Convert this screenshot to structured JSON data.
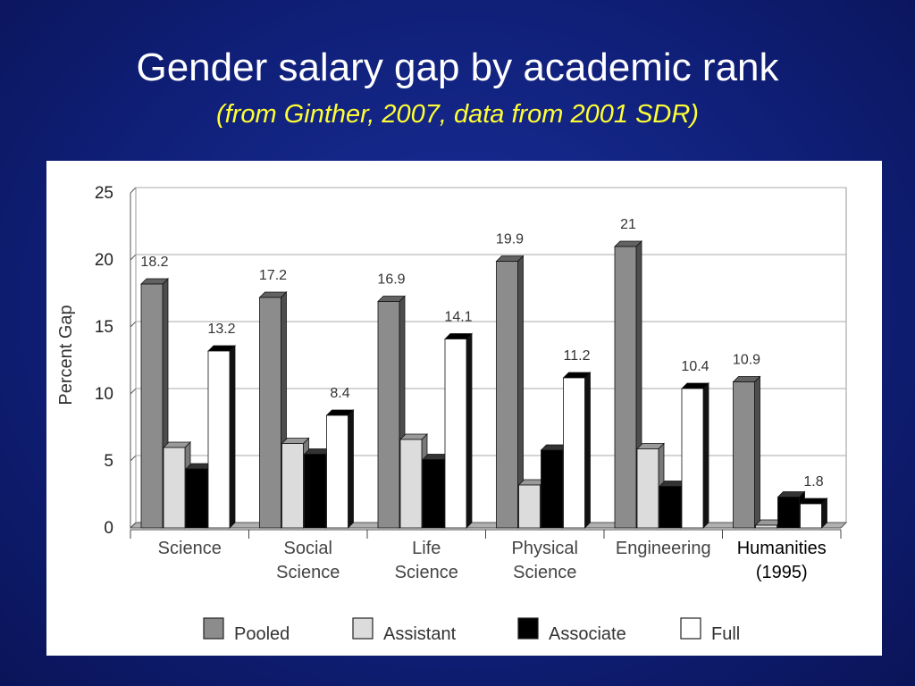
{
  "slide": {
    "title": "Gender salary gap by academic rank",
    "subtitle": "(from Ginther, 2007, data from 2001 SDR)"
  },
  "chart_data": {
    "type": "bar",
    "title": "",
    "xlabel": "",
    "ylabel": "Percent Gap",
    "ylim": [
      0,
      25
    ],
    "yticks": [
      0,
      5,
      10,
      15,
      20,
      25
    ],
    "grid": true,
    "legend_position": "bottom",
    "categories": [
      [
        "Science"
      ],
      [
        "Social",
        "Science"
      ],
      [
        "Life",
        "Science"
      ],
      [
        "Physical",
        "Science"
      ],
      [
        "Engineering"
      ],
      [
        "Humanities",
        "(1995)"
      ]
    ],
    "series": [
      {
        "name": "Pooled",
        "color": "#8c8c8c",
        "values": [
          18.2,
          17.2,
          16.9,
          19.9,
          21,
          10.9
        ],
        "labels": [
          "18.2",
          "17.2",
          "16.9",
          "19.9",
          "21",
          "10.9"
        ]
      },
      {
        "name": "Assistant",
        "color": "#dcdcdc",
        "values": [
          6,
          6.3,
          6.6,
          3.2,
          5.9,
          0.2
        ],
        "labels": [
          "",
          "",
          "",
          "",
          "",
          ""
        ]
      },
      {
        "name": "Associate",
        "color": "#000000",
        "values": [
          4.4,
          5.5,
          5.1,
          5.8,
          3.1,
          2.3
        ],
        "labels": [
          "",
          "",
          "",
          "",
          "",
          ""
        ]
      },
      {
        "name": "Full",
        "color": "#ffffff",
        "values": [
          13.2,
          8.4,
          14.1,
          11.2,
          10.4,
          1.8
        ],
        "labels": [
          "13.2",
          "8.4",
          "14.1",
          "11.2",
          "10.4",
          "1.8"
        ]
      }
    ]
  }
}
